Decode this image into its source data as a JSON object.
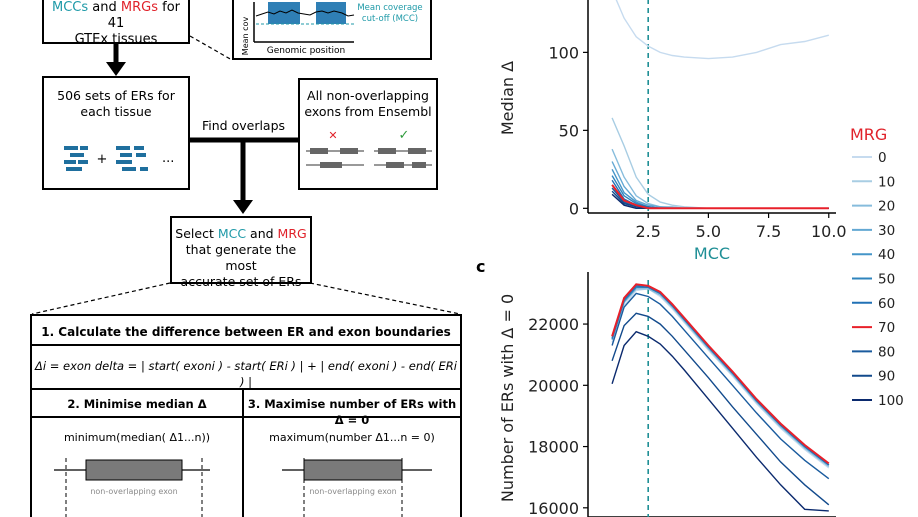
{
  "flow": {
    "top_box": {
      "prefix_mcc": "MCCs",
      "and": " and ",
      "mrg": "MRGs",
      "suffix": " for 41",
      "line2": "GTEx tissues"
    },
    "inset": {
      "y_label": "Mean cov",
      "mcc_label_1": "Mean coverage",
      "mcc_label_2": "cut-off (MCC)",
      "x_label": "Genomic position"
    },
    "er_box": {
      "line1": "506 sets of ERs for",
      "line2": "each tissue",
      "plus": "+",
      "dots": "..."
    },
    "exon_box": {
      "line1": "All non-overlapping",
      "line2": "exons from Ensembl",
      "cross": "✕",
      "check": "✓"
    },
    "find_overlaps": "Find overlaps",
    "select_box": {
      "line1_pre": "Select ",
      "mcc": "MCC",
      "and": " and ",
      "mrg": "MRG",
      "line2": "that generate the most",
      "line3": "accurate set of ERs"
    },
    "step1": "1. Calculate the difference between ER and exon boundaries",
    "formula": "Δi = exon delta = | start( exoni ) - start( ERi ) | + | end( exoni ) - end( ERi ) |",
    "step2": "2. Minimise median Δ",
    "step3": "3. Maximise number of ERs with Δ = 0",
    "min_text": "minimum(median( Δ1...n))",
    "max_text": "maximum(number Δ1...n = 0)",
    "exon_label": "non-overlapping exon"
  },
  "panel_c_label": "c",
  "legend": {
    "title": "MRG",
    "entries": [
      {
        "label": "0",
        "color": "#c6dbef"
      },
      {
        "label": "10",
        "color": "#a8cde3"
      },
      {
        "label": "20",
        "color": "#86bcdc"
      },
      {
        "label": "30",
        "color": "#63a8d3"
      },
      {
        "label": "40",
        "color": "#4595c8"
      },
      {
        "label": "50",
        "color": "#2f84bd"
      },
      {
        "label": "60",
        "color": "#2171b5"
      },
      {
        "label": "70",
        "color": "#e8202a"
      },
      {
        "label": "80",
        "color": "#1a5b9e"
      },
      {
        "label": "90",
        "color": "#124a8c"
      },
      {
        "label": "100",
        "color": "#0b2a6e"
      }
    ]
  },
  "chart_data": [
    {
      "type": "line",
      "xlabel": "MCC",
      "ylabel": "Median Δ",
      "xlim": [
        0,
        10.3
      ],
      "ylim": [
        -3,
        140
      ],
      "xticks": [
        "2.5",
        "5.0",
        "7.5",
        "10.0"
      ],
      "yticks": [
        "0",
        "50",
        "100"
      ],
      "vline_x": 2.5,
      "grid": false,
      "series": [
        {
          "name": "0",
          "x": [
            1,
            1.5,
            2,
            2.5,
            3,
            3.5,
            4,
            5,
            6,
            7,
            8,
            9,
            10
          ],
          "y": [
            140,
            122,
            110,
            104,
            100,
            98,
            97,
            96,
            97,
            100,
            105,
            107,
            111
          ]
        },
        {
          "name": "10",
          "x": [
            1,
            1.5,
            2,
            2.5,
            3,
            3.5,
            4,
            5,
            6,
            7,
            8,
            9,
            10
          ],
          "y": [
            58,
            40,
            20,
            9,
            4,
            2,
            1,
            0,
            0,
            0,
            0,
            0,
            0
          ]
        },
        {
          "name": "20",
          "x": [
            1,
            1.5,
            2,
            2.5,
            3,
            3.5,
            4,
            5,
            6,
            7,
            8,
            9,
            10
          ],
          "y": [
            38,
            20,
            8,
            3,
            1,
            1,
            0,
            0,
            0,
            0,
            0,
            0,
            0
          ]
        },
        {
          "name": "30",
          "x": [
            1,
            1.5,
            2,
            2.5,
            3,
            3.5,
            4,
            5,
            6,
            7,
            8,
            9,
            10
          ],
          "y": [
            30,
            14,
            5,
            2,
            1,
            0,
            0,
            0,
            0,
            0,
            0,
            0,
            0
          ]
        },
        {
          "name": "40",
          "x": [
            1,
            1.5,
            2,
            2.5,
            3,
            3.5,
            4,
            5,
            6,
            7,
            8,
            9,
            10
          ],
          "y": [
            25,
            10,
            4,
            1,
            0,
            0,
            0,
            0,
            0,
            0,
            0,
            0,
            0
          ]
        },
        {
          "name": "50",
          "x": [
            1,
            1.5,
            2,
            2.5,
            3,
            3.5,
            4,
            5,
            6,
            7,
            8,
            9,
            10
          ],
          "y": [
            21,
            8,
            3,
            1,
            0,
            0,
            0,
            0,
            0,
            0,
            0,
            0,
            0
          ]
        },
        {
          "name": "60",
          "x": [
            1,
            1.5,
            2,
            2.5,
            3,
            3.5,
            4,
            5,
            6,
            7,
            8,
            9,
            10
          ],
          "y": [
            18,
            6,
            2,
            1,
            0,
            0,
            0,
            0,
            0,
            0,
            0,
            0,
            0
          ]
        },
        {
          "name": "70",
          "x": [
            1,
            1.5,
            2,
            2.5,
            3,
            3.5,
            4,
            5,
            6,
            7,
            8,
            9,
            10
          ],
          "y": [
            15,
            5,
            2,
            0,
            0,
            0,
            0,
            0,
            0,
            0,
            0,
            0,
            0
          ]
        },
        {
          "name": "80",
          "x": [
            1,
            1.5,
            2,
            2.5,
            3,
            3.5,
            4,
            5,
            6,
            7,
            8,
            9,
            10
          ],
          "y": [
            13,
            4,
            1,
            0,
            0,
            0,
            0,
            0,
            0,
            0,
            0,
            0,
            0
          ]
        },
        {
          "name": "90",
          "x": [
            1,
            1.5,
            2,
            2.5,
            3,
            3.5,
            4,
            5,
            6,
            7,
            8,
            9,
            10
          ],
          "y": [
            11,
            3,
            1,
            0,
            0,
            0,
            0,
            0,
            0,
            0,
            0,
            0,
            0
          ]
        },
        {
          "name": "100",
          "x": [
            1,
            1.5,
            2,
            2.5,
            3,
            3.5,
            4,
            5,
            6,
            7,
            8,
            9,
            10
          ],
          "y": [
            9,
            2,
            0,
            0,
            0,
            0,
            0,
            0,
            0,
            0,
            0,
            0,
            0
          ]
        }
      ]
    },
    {
      "type": "line",
      "xlabel": "",
      "ylabel": "Number of ERs with  Δ = 0",
      "xlim": [
        0,
        10.3
      ],
      "ylim": [
        15700,
        23700
      ],
      "yticks": [
        "16000",
        "18000",
        "20000",
        "22000"
      ],
      "vline_x": 2.5,
      "grid": false,
      "series": [
        {
          "name": "0",
          "x": [
            1,
            1.5,
            2,
            2.5,
            3,
            3.5,
            4,
            5,
            6,
            7,
            8,
            9,
            10
          ],
          "y": [
            21400,
            22600,
            23100,
            23150,
            22900,
            22500,
            22050,
            21150,
            20300,
            19400,
            18600,
            17900,
            17300
          ]
        },
        {
          "name": "10",
          "x": [
            1,
            1.5,
            2,
            2.5,
            3,
            3.5,
            4,
            5,
            6,
            7,
            8,
            9,
            10
          ],
          "y": [
            21500,
            22700,
            23150,
            23150,
            22950,
            22550,
            22100,
            21200,
            20350,
            19450,
            18650,
            17950,
            17350
          ]
        },
        {
          "name": "20",
          "x": [
            1,
            1.5,
            2,
            2.5,
            3,
            3.5,
            4,
            5,
            6,
            7,
            8,
            9,
            10
          ],
          "y": [
            21500,
            22700,
            23150,
            23150,
            22950,
            22550,
            22100,
            21200,
            20350,
            19450,
            18650,
            17950,
            17350
          ]
        },
        {
          "name": "30",
          "x": [
            1,
            1.5,
            2,
            2.5,
            3,
            3.5,
            4,
            5,
            6,
            7,
            8,
            9,
            10
          ],
          "y": [
            21500,
            22750,
            23200,
            23200,
            23000,
            22600,
            22150,
            21250,
            20400,
            19500,
            18700,
            18000,
            17400
          ]
        },
        {
          "name": "40",
          "x": [
            1,
            1.5,
            2,
            2.5,
            3,
            3.5,
            4,
            5,
            6,
            7,
            8,
            9,
            10
          ],
          "y": [
            21500,
            22750,
            23200,
            23200,
            23000,
            22600,
            22150,
            21250,
            20400,
            19500,
            18700,
            18000,
            17400
          ]
        },
        {
          "name": "50",
          "x": [
            1,
            1.5,
            2,
            2.5,
            3,
            3.5,
            4,
            5,
            6,
            7,
            8,
            9,
            10
          ],
          "y": [
            21500,
            22750,
            23200,
            23200,
            23000,
            22600,
            22150,
            21250,
            20400,
            19500,
            18700,
            18000,
            17400
          ]
        },
        {
          "name": "60",
          "x": [
            1,
            1.5,
            2,
            2.5,
            3,
            3.5,
            4,
            5,
            6,
            7,
            8,
            9,
            10
          ],
          "y": [
            21550,
            22800,
            23250,
            23200,
            23000,
            22600,
            22150,
            21250,
            20400,
            19500,
            18700,
            18000,
            17400
          ]
        },
        {
          "name": "70",
          "x": [
            1,
            1.5,
            2,
            2.5,
            3,
            3.5,
            4,
            5,
            6,
            7,
            8,
            9,
            10
          ],
          "y": [
            21600,
            22850,
            23300,
            23250,
            23050,
            22650,
            22200,
            21300,
            20450,
            19550,
            18750,
            18050,
            17450
          ]
        },
        {
          "name": "80",
          "x": [
            1,
            1.5,
            2,
            2.5,
            3,
            3.5,
            4,
            5,
            6,
            7,
            8,
            9,
            10
          ],
          "y": [
            21300,
            22550,
            23000,
            22900,
            22650,
            22250,
            21800,
            20900,
            20000,
            19100,
            18250,
            17550,
            16950
          ]
        },
        {
          "name": "90",
          "x": [
            1,
            1.5,
            2,
            2.5,
            3,
            3.5,
            4,
            5,
            6,
            7,
            8,
            9,
            10
          ],
          "y": [
            20800,
            21950,
            22350,
            22250,
            22000,
            21600,
            21150,
            20250,
            19300,
            18400,
            17500,
            16750,
            16100
          ]
        },
        {
          "name": "100",
          "x": [
            1,
            1.5,
            2,
            2.5,
            3,
            3.5,
            4,
            5,
            6,
            7,
            8,
            9,
            10
          ],
          "y": [
            20050,
            21300,
            21750,
            21600,
            21350,
            20950,
            20500,
            19550,
            18600,
            17650,
            16750,
            15950,
            15900
          ]
        }
      ]
    }
  ]
}
